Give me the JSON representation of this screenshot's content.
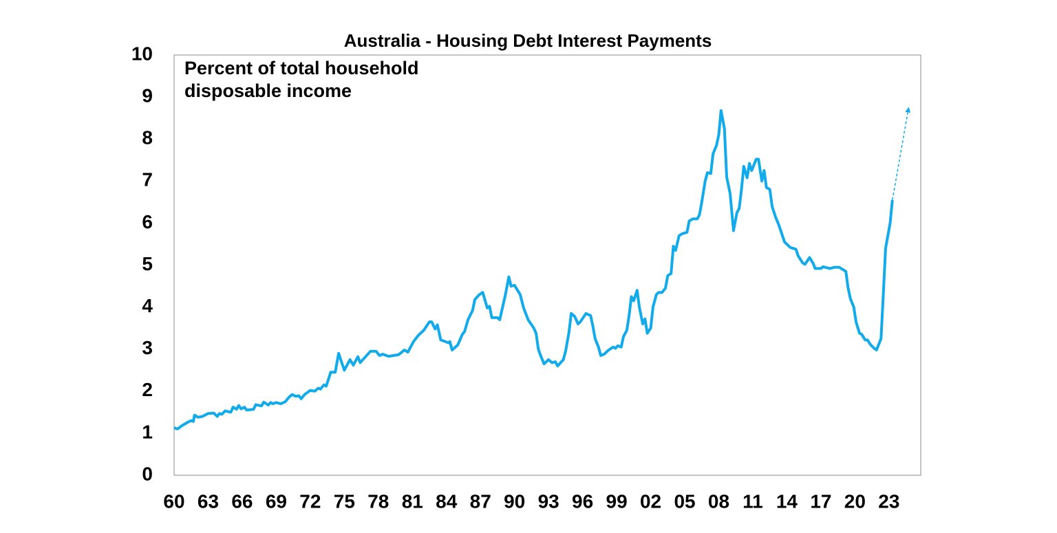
{
  "chart_data": {
    "type": "line",
    "title": "Australia - Housing Debt Interest Payments",
    "annotation": [
      "Percent of total household",
      "disposable income"
    ],
    "color": "#11aaeb",
    "x": [
      1960.0,
      1960.3,
      1960.7,
      1961.2,
      1961.5,
      1961.7,
      1961.8,
      1962.1,
      1962.5,
      1963.0,
      1963.5,
      1963.8,
      1964.0,
      1964.2,
      1964.5,
      1965.0,
      1965.2,
      1965.5,
      1965.7,
      1965.9,
      1966.2,
      1966.4,
      1967.0,
      1967.2,
      1967.7,
      1967.9,
      1968.3,
      1968.5,
      1968.7,
      1969.0,
      1969.4,
      1969.8,
      1970.1,
      1970.4,
      1970.7,
      1971.0,
      1971.2,
      1971.5,
      1972.0,
      1972.4,
      1972.7,
      1972.9,
      1973.2,
      1973.4,
      1973.8,
      1974.2,
      1974.5,
      1975.0,
      1975.5,
      1975.8,
      1976.2,
      1976.4,
      1977.3,
      1977.8,
      1978.1,
      1978.4,
      1978.9,
      1979.8,
      1980.3,
      1980.6,
      1981.1,
      1981.5,
      1982.0,
      1982.5,
      1982.7,
      1983.0,
      1983.2,
      1983.5,
      1984.2,
      1984.3,
      1984.5,
      1985.0,
      1985.4,
      1985.6,
      1985.9,
      1986.3,
      1986.5,
      1986.9,
      1987.2,
      1987.6,
      1987.8,
      1988.0,
      1988.5,
      1988.7,
      1989.2,
      1989.5,
      1989.7,
      1990.0,
      1990.5,
      1990.8,
      1991.2,
      1991.7,
      1991.9,
      1992.1,
      1992.3,
      1992.6,
      1993.0,
      1993.3,
      1993.6,
      1993.8,
      1994.3,
      1994.5,
      1994.8,
      1995.0,
      1995.3,
      1995.6,
      1995.8,
      1996.3,
      1996.7,
      1996.9,
      1997.1,
      1997.4,
      1997.6,
      1997.9,
      1998.3,
      1998.7,
      1998.9,
      1999.1,
      1999.4,
      1999.6,
      1999.9,
      2000.1,
      2000.3,
      2000.5,
      2000.8,
      2001.0,
      2001.3,
      2001.5,
      2001.7,
      2002.0,
      2002.2,
      2002.5,
      2002.7,
      2003.0,
      2003.3,
      2003.5,
      2003.8,
      2004.0,
      2004.2,
      2004.5,
      2004.8,
      2005.2,
      2005.4,
      2005.7,
      2006.1,
      2006.3,
      2006.5,
      2006.8,
      2007.0,
      2007.3,
      2007.5,
      2007.8,
      2008.0,
      2008.2,
      2008.5,
      2008.7,
      2009.0,
      2009.3,
      2009.6,
      2009.8,
      2010.0,
      2010.2,
      2010.5,
      2010.7,
      2010.9,
      2011.3,
      2011.5,
      2011.8,
      2012.0,
      2012.2,
      2012.5,
      2012.7,
      2013.0,
      2013.3,
      2013.8,
      2014.3,
      2014.8,
      2015.0,
      2015.4,
      2015.6,
      2016.0,
      2016.3,
      2016.5,
      2017.0,
      2017.2,
      2017.5,
      2017.8,
      2018.2,
      2018.6,
      2018.9,
      2019.2,
      2019.4,
      2019.6,
      2019.9,
      2020.1,
      2020.4,
      2020.6,
      2020.9,
      2021.1,
      2021.4,
      2021.7,
      2021.9,
      2022.3,
      2022.5,
      2022.7,
      2023.1,
      2023.3
    ],
    "values": [
      1.13,
      1.1,
      1.18,
      1.26,
      1.3,
      1.28,
      1.43,
      1.38,
      1.4,
      1.47,
      1.48,
      1.4,
      1.47,
      1.45,
      1.53,
      1.5,
      1.62,
      1.57,
      1.66,
      1.58,
      1.62,
      1.55,
      1.57,
      1.68,
      1.65,
      1.74,
      1.67,
      1.73,
      1.7,
      1.73,
      1.7,
      1.75,
      1.85,
      1.92,
      1.88,
      1.89,
      1.82,
      1.92,
      2.02,
      2.0,
      2.07,
      2.05,
      2.15,
      2.12,
      2.45,
      2.45,
      2.9,
      2.5,
      2.75,
      2.62,
      2.82,
      2.68,
      2.95,
      2.95,
      2.85,
      2.88,
      2.83,
      2.87,
      2.98,
      2.93,
      3.18,
      3.32,
      3.45,
      3.65,
      3.65,
      3.48,
      3.58,
      3.22,
      3.15,
      3.18,
      2.98,
      3.1,
      3.35,
      3.42,
      3.7,
      3.92,
      4.18,
      4.3,
      4.35,
      3.98,
      4.02,
      3.75,
      3.75,
      3.7,
      4.3,
      4.72,
      4.5,
      4.52,
      4.3,
      3.98,
      3.7,
      3.5,
      3.38,
      3.0,
      2.85,
      2.65,
      2.75,
      2.68,
      2.7,
      2.6,
      2.75,
      2.95,
      3.4,
      3.85,
      3.78,
      3.6,
      3.65,
      3.85,
      3.8,
      3.55,
      3.25,
      3.05,
      2.85,
      2.88,
      2.98,
      3.05,
      3.02,
      3.08,
      3.05,
      3.3,
      3.45,
      3.8,
      4.25,
      4.15,
      4.4,
      4.0,
      3.6,
      3.72,
      3.38,
      3.5,
      4.0,
      4.3,
      4.35,
      4.35,
      4.45,
      4.75,
      4.8,
      5.45,
      5.35,
      5.7,
      5.75,
      5.78,
      6.05,
      6.1,
      6.1,
      6.2,
      6.5,
      7.0,
      7.2,
      7.18,
      7.65,
      7.85,
      8.1,
      8.68,
      8.25,
      7.1,
      6.7,
      5.82,
      6.25,
      6.35,
      6.8,
      7.35,
      7.08,
      7.42,
      7.25,
      7.52,
      7.52,
      7.0,
      7.25,
      6.85,
      6.8,
      6.4,
      6.15,
      5.95,
      5.55,
      5.42,
      5.38,
      5.22,
      5.05,
      5.02,
      5.18,
      5.05,
      4.92,
      4.92,
      4.96,
      4.94,
      4.92,
      4.95,
      4.95,
      4.9,
      4.85,
      4.45,
      4.2,
      4.0,
      3.65,
      3.38,
      3.35,
      3.22,
      3.22,
      3.1,
      3.02,
      2.98,
      3.25,
      4.3,
      5.4,
      6.0,
      6.55
    ],
    "projection": {
      "x": [
        2023.3,
        2024.7
      ],
      "values": [
        6.55,
        8.7
      ]
    },
    "xlim": [
      1960,
      2025.8
    ],
    "ylim": [
      0,
      10
    ],
    "yticks": [
      0,
      1,
      2,
      3,
      4,
      5,
      6,
      7,
      8,
      9,
      10
    ],
    "xticks": [
      {
        "value": 1960,
        "label": "60"
      },
      {
        "value": 1963,
        "label": "63"
      },
      {
        "value": 1966,
        "label": "66"
      },
      {
        "value": 1969,
        "label": "69"
      },
      {
        "value": 1972,
        "label": "72"
      },
      {
        "value": 1975,
        "label": "75"
      },
      {
        "value": 1978,
        "label": "78"
      },
      {
        "value": 1981,
        "label": "81"
      },
      {
        "value": 1984,
        "label": "84"
      },
      {
        "value": 1987,
        "label": "87"
      },
      {
        "value": 1990,
        "label": "90"
      },
      {
        "value": 1993,
        "label": "93"
      },
      {
        "value": 1996,
        "label": "96"
      },
      {
        "value": 1999,
        "label": "99"
      },
      {
        "value": 2002,
        "label": "02"
      },
      {
        "value": 2005,
        "label": "05"
      },
      {
        "value": 2008,
        "label": "08"
      },
      {
        "value": 2011,
        "label": "11"
      },
      {
        "value": 2014,
        "label": "14"
      },
      {
        "value": 2017,
        "label": "17"
      },
      {
        "value": 2020,
        "label": "20"
      },
      {
        "value": 2023,
        "label": "23"
      }
    ],
    "grid": false
  }
}
